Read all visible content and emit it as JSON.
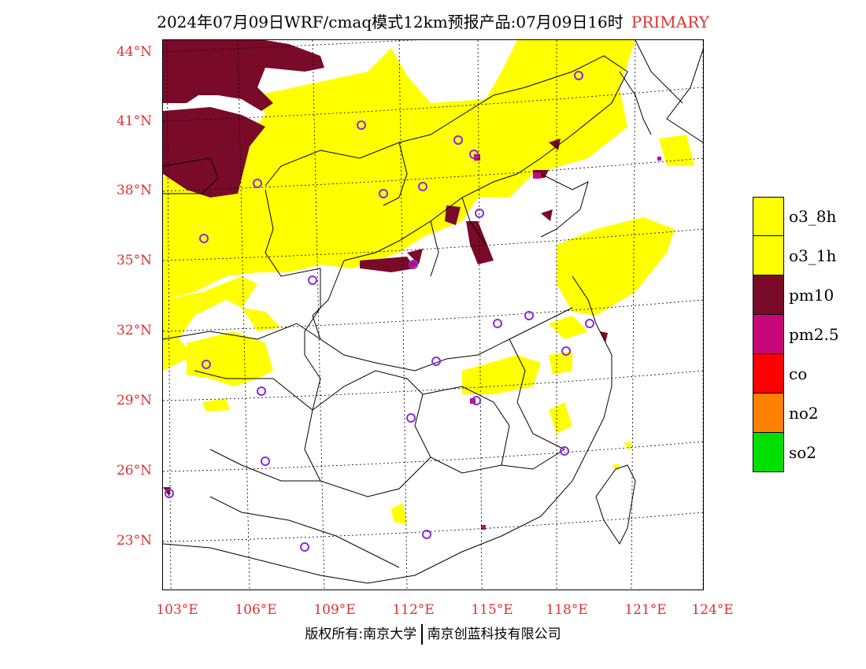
{
  "title": {
    "main": "2024年07月09日WRF/cmaq模式12km预报产品:07月09日16时",
    "tag": "PRIMARY"
  },
  "colors": {
    "o3": "#ffff00",
    "pm10": "#7a0a2a",
    "pm25": "#c8087a",
    "co": "#ff0000",
    "no2": "#ff8000",
    "so2": "#00e000",
    "axis_label": "#e03030",
    "station_ring": "#8a2be2"
  },
  "lat_labels": [
    "44°N",
    "41°N",
    "38°N",
    "35°N",
    "32°N",
    "29°N",
    "26°N",
    "23°N"
  ],
  "lon_labels": [
    "103°E",
    "106°E",
    "109°E",
    "112°E",
    "115°E",
    "118°E",
    "121°E",
    "124°E"
  ],
  "legend": [
    {
      "label": "o3_8h",
      "color": "#ffff00"
    },
    {
      "label": "o3_1h",
      "color": "#ffff00"
    },
    {
      "label": "pm10",
      "color": "#7a0a2a"
    },
    {
      "label": "pm2.5",
      "color": "#c8087a"
    },
    {
      "label": "co",
      "color": "#ff0000"
    },
    {
      "label": "no2",
      "color": "#ff8000"
    },
    {
      "label": "so2",
      "color": "#00e000"
    }
  ],
  "copyright": {
    "left": "版权所有:南京大学",
    "right": "南京创蓝科技有限公司"
  }
}
